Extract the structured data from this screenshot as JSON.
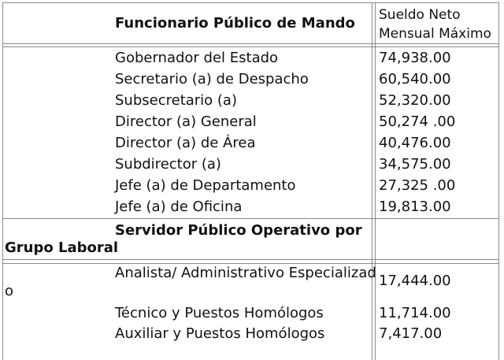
{
  "header": {
    "left_title": "Funcionario Público de Mando",
    "right_line1": "Sueldo Neto",
    "right_line2": "Mensual Máximo"
  },
  "mando_rows": [
    {
      "position": "Gobernador del Estado",
      "salary": "74,938.00"
    },
    {
      "position": "Secretario (a) de Despacho",
      "salary": "60,540.00"
    },
    {
      "position": "Subsecretario (a)",
      "salary": "52,320.00"
    },
    {
      "position": "Director (a) General",
      "salary": "50,274 .00"
    },
    {
      "position": "Director (a) de Área",
      "salary": "40,476.00"
    },
    {
      "position": "Subdirector  (a)",
      "salary": "34,575.00"
    },
    {
      "position": "Jefe (a) de Departamento",
      "salary": "27,325 .00"
    },
    {
      "position": "Jefe (a) de Oficina",
      "salary": "19,813.00"
    }
  ],
  "operativo_section": {
    "title_line1": "Servidor Público Operativo por",
    "title_line2": "Grupo Laboral"
  },
  "operativo_rows": [
    {
      "position_line1": "Analista/ Administrativo Especializad",
      "position_line2": "o",
      "salary": "17,444.00"
    },
    {
      "position": "Técnico y Puestos Homólogos",
      "salary": "11,714.00"
    },
    {
      "position": "Auxiliar y Puestos Homólogos",
      "salary": "7,417.00"
    }
  ]
}
